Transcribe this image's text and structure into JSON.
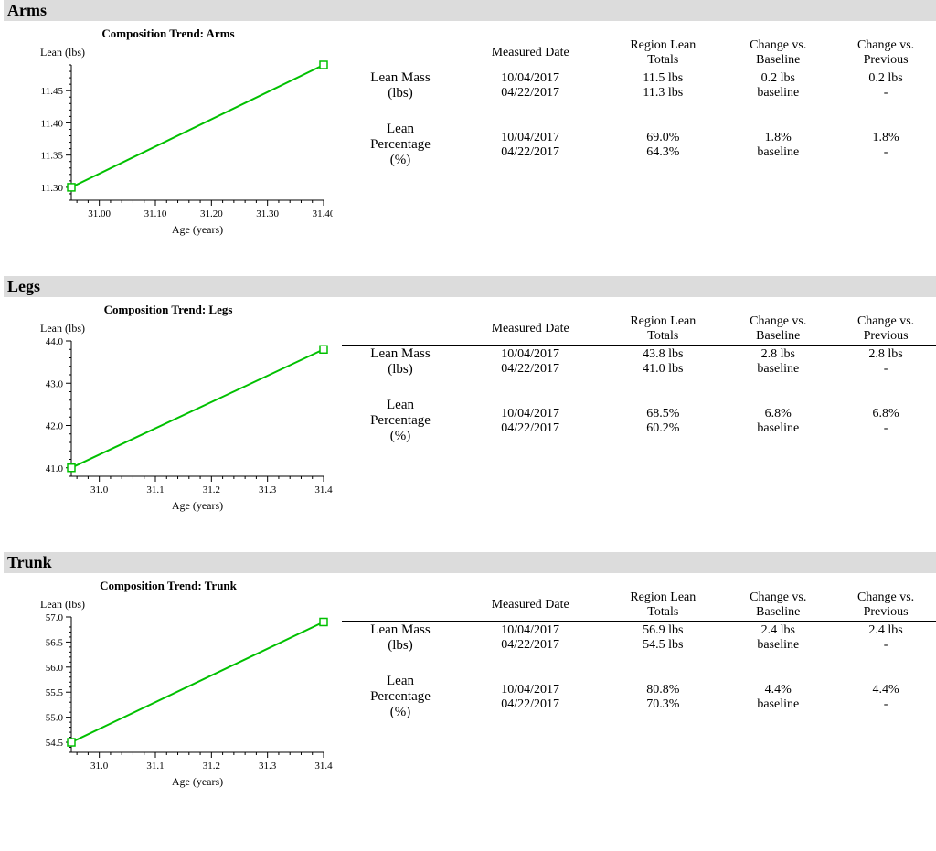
{
  "global": {
    "font_family": "Times New Roman",
    "background_color": "#ffffff",
    "header_bg": "#dcdcdc",
    "border_color": "#000000",
    "line_color": "#00c000",
    "marker_stroke": "#00c000",
    "marker_fill": "#ffffff",
    "axis_color": "#000000",
    "tick_font_size": 11,
    "label_font_size": 12,
    "title_font_size": 13
  },
  "table_headers": {
    "col0": "",
    "col1": "Measured Date",
    "col2": "Region Lean Totals",
    "col3": "Change vs. Baseline",
    "col4": "Change vs. Previous"
  },
  "row_labels": {
    "lean_mass": "Lean Mass",
    "lean_mass_unit": "(lbs)",
    "lean_pct": "Lean",
    "lean_pct2": "Percentage",
    "lean_pct_unit": "(%)"
  },
  "sections": {
    "arms": {
      "title": "Arms",
      "chart": {
        "title": "Composition Trend: Arms",
        "ylabel": "Lean (lbs)",
        "xlabel": "Age (years)",
        "xlim": [
          30.95,
          31.4
        ],
        "xticks": [
          31.0,
          31.1,
          31.2,
          31.3,
          31.4
        ],
        "ylim": [
          11.28,
          11.49
        ],
        "yticks": [
          11.3,
          11.35,
          11.4,
          11.45
        ],
        "points": [
          {
            "x": 30.95,
            "y": 11.3
          },
          {
            "x": 31.4,
            "y": 11.49
          }
        ]
      },
      "data": {
        "lean_mass": [
          {
            "date": "10/04/2017",
            "total": "11.5 lbs",
            "vs_base": "0.2 lbs",
            "vs_prev": "0.2 lbs"
          },
          {
            "date": "04/22/2017",
            "total": "11.3 lbs",
            "vs_base": "baseline",
            "vs_prev": "-"
          }
        ],
        "lean_pct": [
          {
            "date": "10/04/2017",
            "total": "69.0%",
            "vs_base": "1.8%",
            "vs_prev": "1.8%"
          },
          {
            "date": "04/22/2017",
            "total": "64.3%",
            "vs_base": "baseline",
            "vs_prev": "-"
          }
        ]
      }
    },
    "legs": {
      "title": "Legs",
      "chart": {
        "title": "Composition Trend: Legs",
        "ylabel": "Lean (lbs)",
        "xlabel": "Age (years)",
        "xlim": [
          30.95,
          31.4
        ],
        "xticks": [
          31.0,
          31.1,
          31.2,
          31.3,
          31.4
        ],
        "ylim": [
          40.8,
          44.0
        ],
        "yticks": [
          41.0,
          42.0,
          43.0,
          44.0
        ],
        "points": [
          {
            "x": 30.95,
            "y": 41.0
          },
          {
            "x": 31.4,
            "y": 43.8
          }
        ]
      },
      "data": {
        "lean_mass": [
          {
            "date": "10/04/2017",
            "total": "43.8 lbs",
            "vs_base": "2.8 lbs",
            "vs_prev": "2.8 lbs"
          },
          {
            "date": "04/22/2017",
            "total": "41.0 lbs",
            "vs_base": "baseline",
            "vs_prev": "-"
          }
        ],
        "lean_pct": [
          {
            "date": "10/04/2017",
            "total": "68.5%",
            "vs_base": "6.8%",
            "vs_prev": "6.8%"
          },
          {
            "date": "04/22/2017",
            "total": "60.2%",
            "vs_base": "baseline",
            "vs_prev": "-"
          }
        ]
      }
    },
    "trunk": {
      "title": "Trunk",
      "chart": {
        "title": "Composition Trend: Trunk",
        "ylabel": "Lean (lbs)",
        "xlabel": "Age (years)",
        "xlim": [
          30.95,
          31.4
        ],
        "xticks": [
          31.0,
          31.1,
          31.2,
          31.3,
          31.4
        ],
        "ylim": [
          54.3,
          57.0
        ],
        "yticks": [
          54.5,
          55.0,
          55.5,
          56.0,
          56.5,
          57.0
        ],
        "points": [
          {
            "x": 30.95,
            "y": 54.5
          },
          {
            "x": 31.4,
            "y": 56.9
          }
        ]
      },
      "data": {
        "lean_mass": [
          {
            "date": "10/04/2017",
            "total": "56.9 lbs",
            "vs_base": "2.4 lbs",
            "vs_prev": "2.4 lbs"
          },
          {
            "date": "04/22/2017",
            "total": "54.5 lbs",
            "vs_base": "baseline",
            "vs_prev": "-"
          }
        ],
        "lean_pct": [
          {
            "date": "10/04/2017",
            "total": "80.8%",
            "vs_base": "4.4%",
            "vs_prev": "4.4%"
          },
          {
            "date": "04/22/2017",
            "total": "70.3%",
            "vs_base": "baseline",
            "vs_prev": "-"
          }
        ]
      }
    }
  }
}
